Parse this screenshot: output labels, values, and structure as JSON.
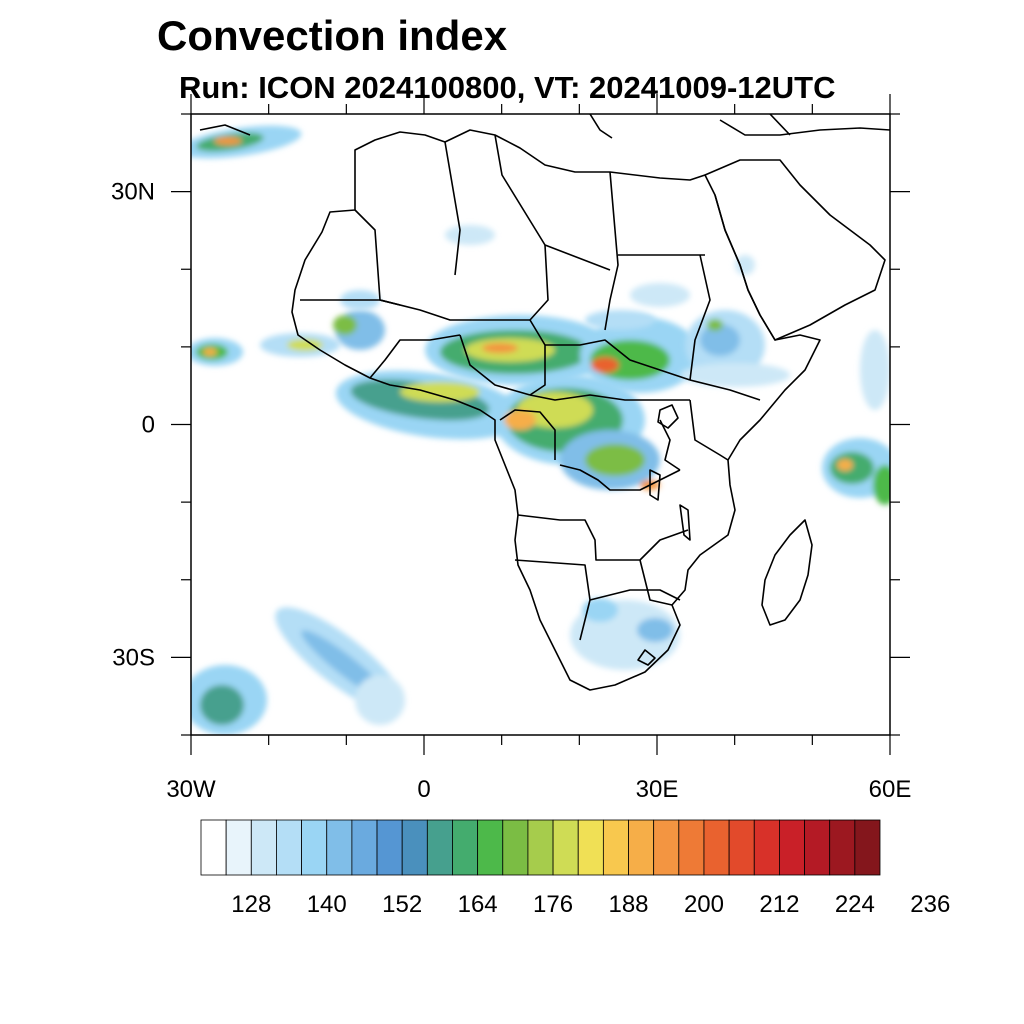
{
  "title": "Convection index",
  "subtitle": "Run: ICON 2024100800,  VT: 20241009-12UTC",
  "map": {
    "lon_range": [
      -30,
      60
    ],
    "lat_range": [
      -40,
      40
    ],
    "lat_ticks": [
      {
        "value": 30,
        "label": "30N"
      },
      {
        "value": 0,
        "label": "0"
      },
      {
        "value": -30,
        "label": "30S"
      }
    ],
    "lon_ticks": [
      {
        "value": -30,
        "label": "30W"
      },
      {
        "value": 0,
        "label": "0"
      },
      {
        "value": 30,
        "label": "30E"
      },
      {
        "value": 60,
        "label": "60E"
      }
    ],
    "land_outline_color": "#000000",
    "convection_regions": [
      {
        "area": "Sahel / West Africa",
        "level": 176
      },
      {
        "area": "Central Africa / Congo Basin",
        "level": 188
      },
      {
        "area": "Ethiopian Highlands",
        "level": 176
      },
      {
        "area": "Gulf of Guinea",
        "level": 164
      },
      {
        "area": "East Atlantic (25N)",
        "level": 200
      },
      {
        "area": "East Atlantic (10N)",
        "level": 188
      },
      {
        "area": "Indian Ocean near Seychelles",
        "level": 200
      },
      {
        "area": "South Atlantic (30S-40S)",
        "level": 152
      },
      {
        "area": "Southeastern Africa",
        "level": 152
      }
    ]
  },
  "colorbar": {
    "colors": [
      "#ffffff",
      "#e8f4fb",
      "#cde8f7",
      "#b4def6",
      "#9ad5f4",
      "#80bee8",
      "#6aaadf",
      "#5596d3",
      "#4a90bd",
      "#46a08e",
      "#44ac6e",
      "#4db94a",
      "#7bbd44",
      "#a6cc4c",
      "#cfdc55",
      "#f0e055",
      "#f8c84e",
      "#f6ae48",
      "#f39541",
      "#ee7a36",
      "#e9622f",
      "#e24a2b",
      "#d83129",
      "#c92028",
      "#b41a25",
      "#9c1820",
      "#84161c"
    ],
    "labels": [
      "128",
      "140",
      "152",
      "164",
      "176",
      "188",
      "200",
      "212",
      "224",
      "236"
    ]
  }
}
